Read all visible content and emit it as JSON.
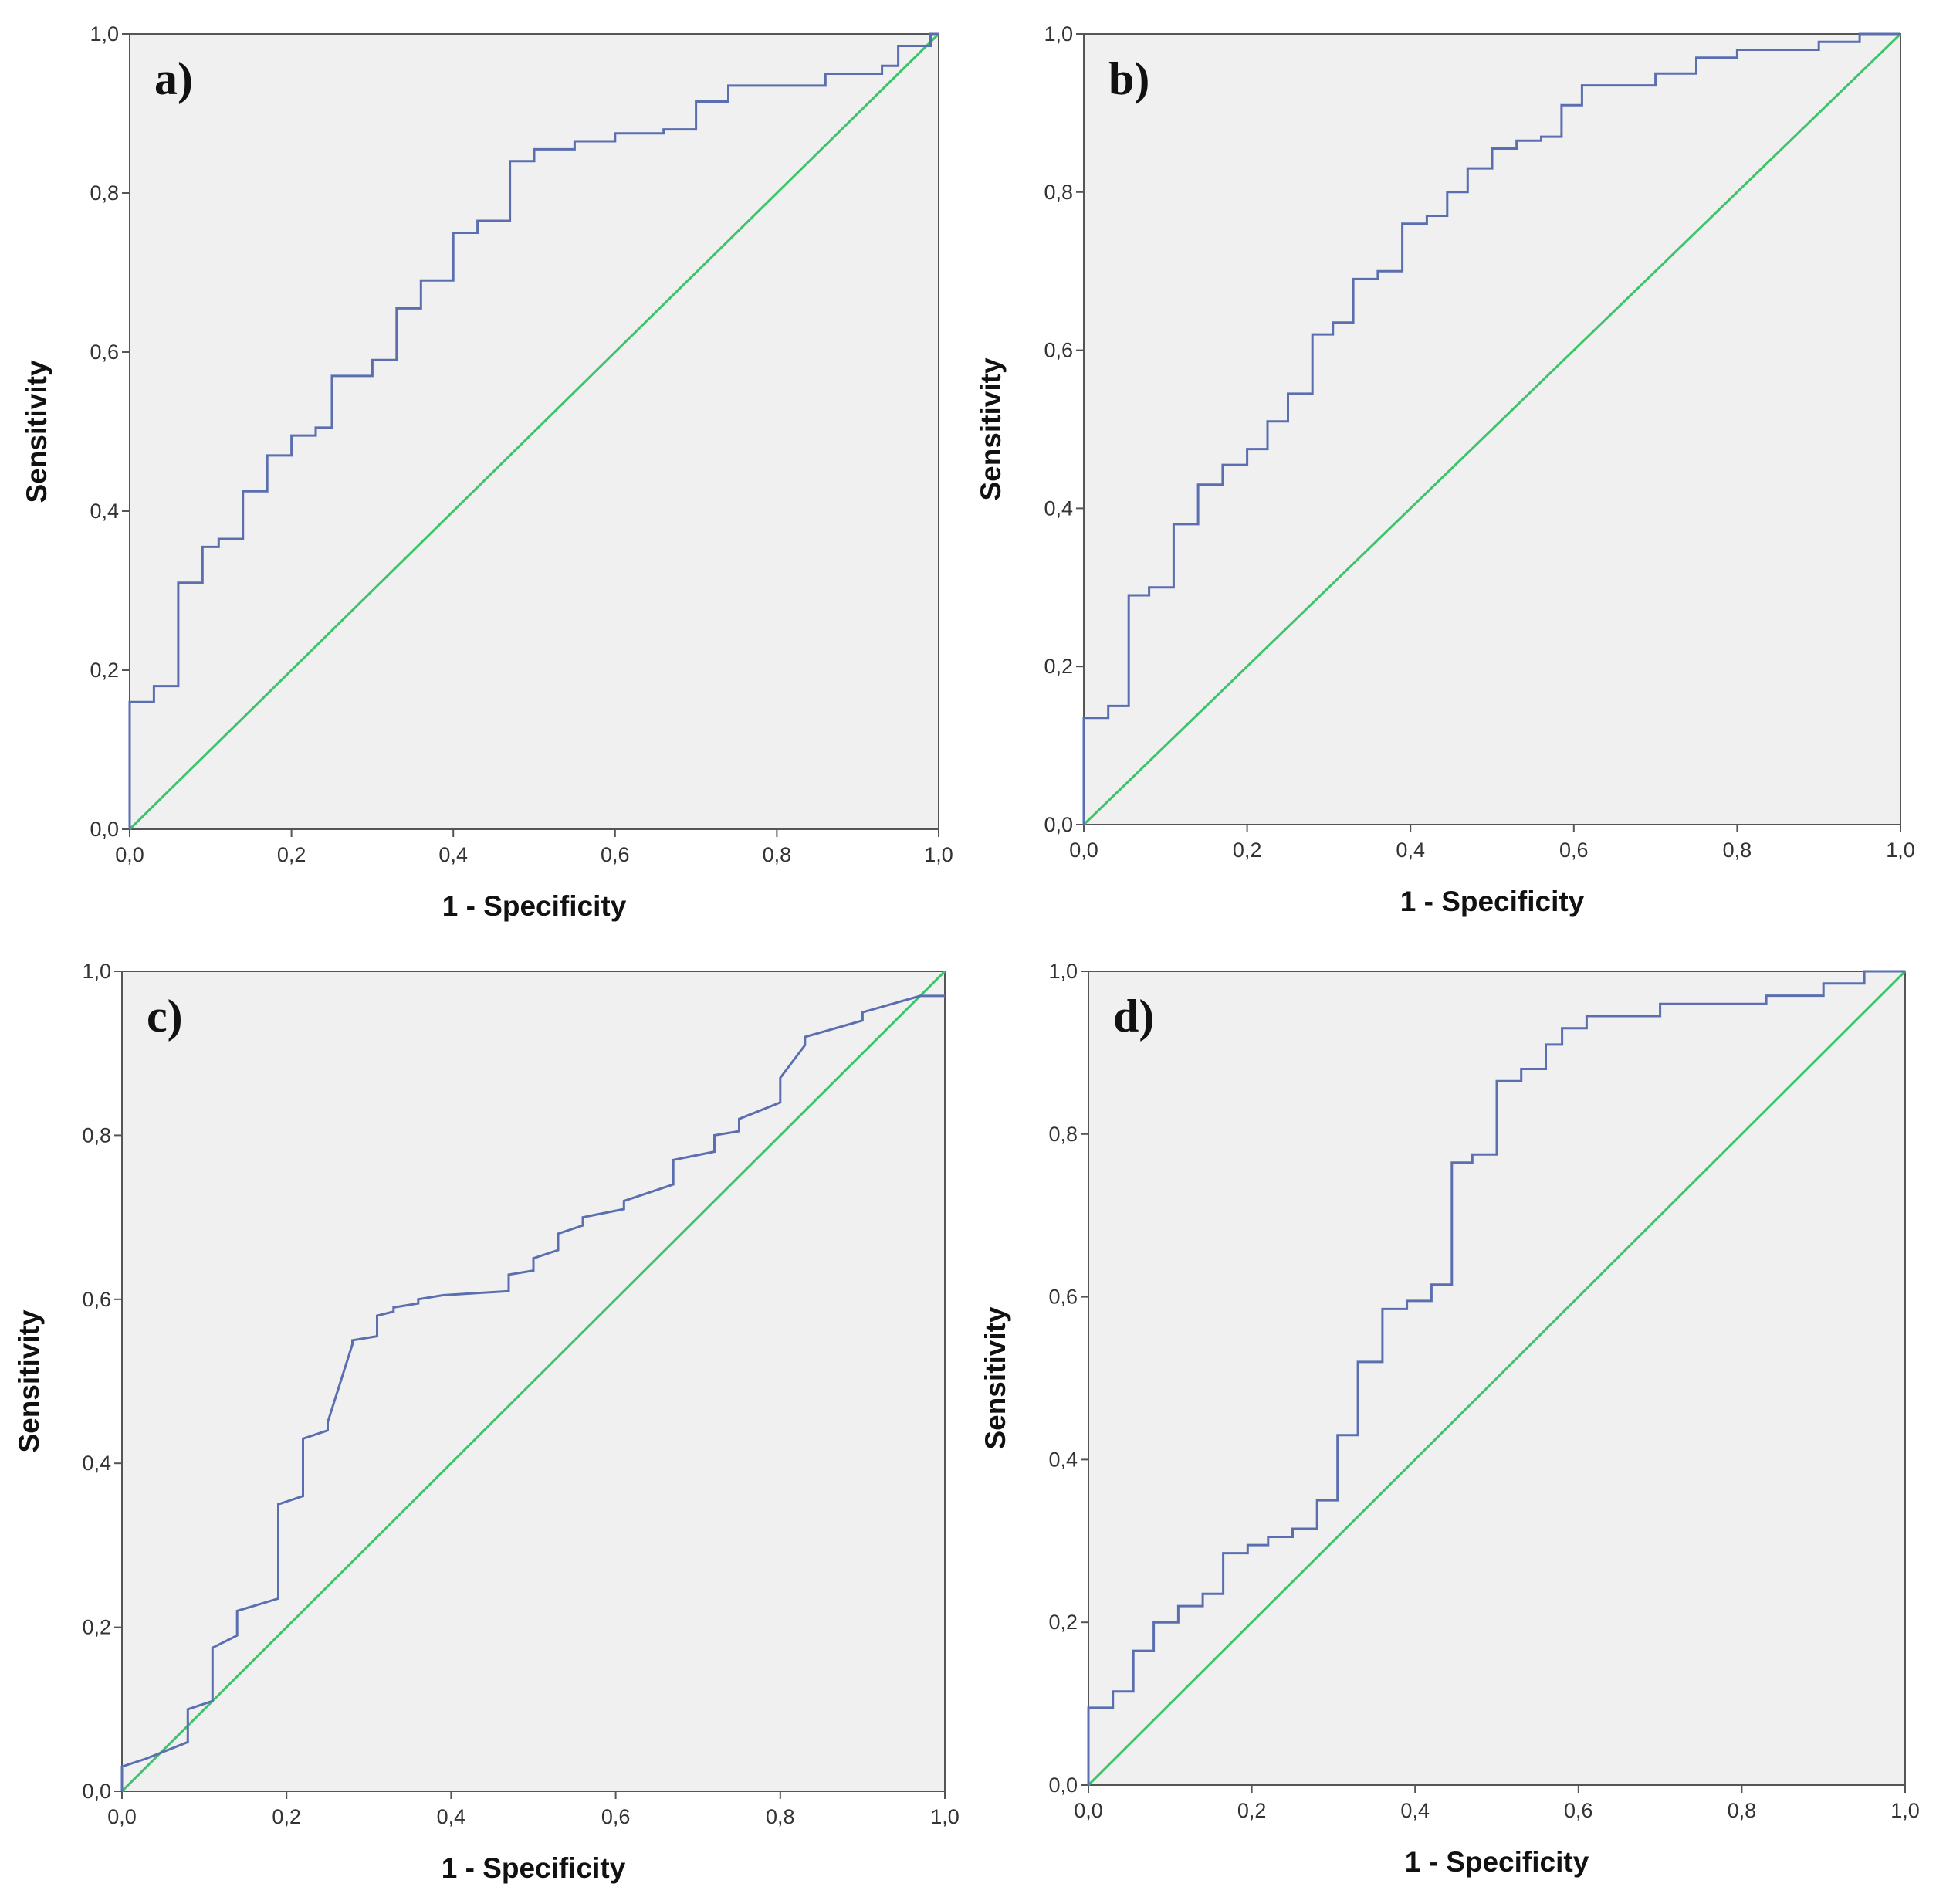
{
  "colors": {
    "roc_curve": "#5b6fb0",
    "reference_line": "#3cc46a"
  },
  "chart_data": [
    {
      "type": "line",
      "panel": "a)",
      "xlabel": "1 - Specificity",
      "ylabel": "Sensitivity",
      "xlim": [
        0,
        1
      ],
      "ylim": [
        0,
        1
      ],
      "x_ticks": [
        "0,0",
        "0,2",
        "0,4",
        "0,6",
        "0,8",
        "1,0"
      ],
      "y_ticks": [
        "0,0",
        "0,2",
        "0,4",
        "0,6",
        "0,8",
        "1,0"
      ],
      "series": [
        {
          "name": "ROC curve",
          "x": [
            0,
            0,
            0.03,
            0.03,
            0.06,
            0.06,
            0.09,
            0.09,
            0.11,
            0.11,
            0.14,
            0.14,
            0.17,
            0.17,
            0.2,
            0.2,
            0.23,
            0.23,
            0.25,
            0.25,
            0.3,
            0.3,
            0.33,
            0.33,
            0.36,
            0.36,
            0.4,
            0.4,
            0.43,
            0.43,
            0.47,
            0.47,
            0.5,
            0.5,
            0.55,
            0.55,
            0.6,
            0.6,
            0.66,
            0.66,
            0.7,
            0.7,
            0.74,
            0.74,
            0.86,
            0.86,
            0.93,
            0.93,
            0.95,
            0.95,
            0.99,
            0.99,
            1
          ],
          "y": [
            0,
            0.16,
            0.16,
            0.18,
            0.18,
            0.31,
            0.31,
            0.355,
            0.355,
            0.365,
            0.365,
            0.425,
            0.425,
            0.47,
            0.47,
            0.495,
            0.495,
            0.505,
            0.505,
            0.57,
            0.57,
            0.59,
            0.59,
            0.655,
            0.655,
            0.69,
            0.69,
            0.75,
            0.75,
            0.765,
            0.765,
            0.84,
            0.84,
            0.855,
            0.855,
            0.865,
            0.865,
            0.875,
            0.875,
            0.88,
            0.88,
            0.915,
            0.915,
            0.935,
            0.935,
            0.95,
            0.95,
            0.96,
            0.96,
            0.985,
            0.985,
            1,
            1
          ]
        },
        {
          "name": "Reference line",
          "x": [
            0,
            1
          ],
          "y": [
            0,
            1
          ]
        }
      ]
    },
    {
      "type": "line",
      "panel": "b)",
      "xlabel": "1 - Specificity",
      "ylabel": "Sensitivity",
      "xlim": [
        0,
        1
      ],
      "ylim": [
        0,
        1
      ],
      "x_ticks": [
        "0,0",
        "0,2",
        "0,4",
        "0,6",
        "0,8",
        "1,0"
      ],
      "y_ticks": [
        "0,0",
        "0,2",
        "0,4",
        "0,6",
        "0,8",
        "1,0"
      ],
      "series": [
        {
          "name": "ROC curve",
          "x": [
            0,
            0,
            0.03,
            0.03,
            0.055,
            0.055,
            0.08,
            0.08,
            0.11,
            0.11,
            0.14,
            0.14,
            0.17,
            0.17,
            0.2,
            0.2,
            0.225,
            0.225,
            0.25,
            0.25,
            0.28,
            0.28,
            0.305,
            0.305,
            0.33,
            0.33,
            0.36,
            0.36,
            0.39,
            0.39,
            0.42,
            0.42,
            0.445,
            0.445,
            0.47,
            0.47,
            0.5,
            0.5,
            0.53,
            0.53,
            0.56,
            0.56,
            0.585,
            0.585,
            0.61,
            0.61,
            0.7,
            0.7,
            0.75,
            0.75,
            0.8,
            0.8,
            0.9,
            0.9,
            0.95,
            0.95,
            1
          ],
          "y": [
            0,
            0.135,
            0.135,
            0.15,
            0.15,
            0.29,
            0.29,
            0.3,
            0.3,
            0.38,
            0.38,
            0.43,
            0.43,
            0.455,
            0.455,
            0.475,
            0.475,
            0.51,
            0.51,
            0.545,
            0.545,
            0.62,
            0.62,
            0.635,
            0.635,
            0.69,
            0.69,
            0.7,
            0.7,
            0.76,
            0.76,
            0.77,
            0.77,
            0.8,
            0.8,
            0.83,
            0.83,
            0.855,
            0.855,
            0.865,
            0.865,
            0.87,
            0.87,
            0.91,
            0.91,
            0.935,
            0.935,
            0.95,
            0.95,
            0.97,
            0.97,
            0.98,
            0.98,
            0.99,
            0.99,
            1,
            1
          ]
        },
        {
          "name": "Reference line",
          "x": [
            0,
            1
          ],
          "y": [
            0,
            1
          ]
        }
      ]
    },
    {
      "type": "line",
      "panel": "c)",
      "xlabel": "1 - Specificity",
      "ylabel": "Sensitivity",
      "xlim": [
        0,
        1
      ],
      "ylim": [
        0,
        1
      ],
      "x_ticks": [
        "0,0",
        "0,2",
        "0,4",
        "0,6",
        "0,8",
        "1,0"
      ],
      "y_ticks": [
        "0,0",
        "0,2",
        "0,4",
        "0,6",
        "0,8",
        "1,0"
      ],
      "series": [
        {
          "name": "ROC curve",
          "x": [
            0,
            0,
            0.03,
            0.03,
            0.08,
            0.08,
            0.11,
            0.11,
            0.14,
            0.14,
            0.19,
            0.19,
            0.22,
            0.22,
            0.25,
            0.25,
            0.28,
            0.28,
            0.31,
            0.31,
            0.33,
            0.33,
            0.36,
            0.36,
            0.39,
            0.47,
            0.47,
            0.5,
            0.5,
            0.53,
            0.53,
            0.56,
            0.56,
            0.61,
            0.61,
            0.67,
            0.67,
            0.72,
            0.72,
            0.75,
            0.75,
            0.8,
            0.8,
            0.83,
            0.83,
            0.9,
            0.9,
            0.97,
            0.97,
            1
          ],
          "y": [
            0,
            0.03,
            0.04,
            0.04,
            0.06,
            0.1,
            0.11,
            0.175,
            0.19,
            0.22,
            0.235,
            0.35,
            0.36,
            0.43,
            0.44,
            0.45,
            0.545,
            0.55,
            0.555,
            0.58,
            0.585,
            0.59,
            0.595,
            0.6,
            0.605,
            0.61,
            0.63,
            0.635,
            0.65,
            0.66,
            0.68,
            0.69,
            0.7,
            0.71,
            0.72,
            0.74,
            0.77,
            0.78,
            0.8,
            0.805,
            0.82,
            0.84,
            0.87,
            0.91,
            0.92,
            0.94,
            0.95,
            0.97,
            0.97,
            0.97
          ]
        },
        {
          "name": "Reference line",
          "x": [
            0,
            1
          ],
          "y": [
            0,
            1
          ]
        }
      ]
    },
    {
      "type": "line",
      "panel": "d)",
      "xlabel": "1 - Specificity",
      "ylabel": "Sensitivity",
      "xlim": [
        0,
        1
      ],
      "ylim": [
        0,
        1
      ],
      "x_ticks": [
        "0,0",
        "0,2",
        "0,4",
        "0,6",
        "0,8",
        "1,0"
      ],
      "y_ticks": [
        "0,0",
        "0,2",
        "0,4",
        "0,6",
        "0,8",
        "1,0"
      ],
      "series": [
        {
          "name": "ROC curve",
          "x": [
            0,
            0,
            0.03,
            0.03,
            0.055,
            0.055,
            0.08,
            0.08,
            0.11,
            0.11,
            0.14,
            0.14,
            0.165,
            0.165,
            0.195,
            0.195,
            0.22,
            0.22,
            0.25,
            0.25,
            0.28,
            0.28,
            0.305,
            0.305,
            0.33,
            0.33,
            0.36,
            0.36,
            0.39,
            0.39,
            0.42,
            0.42,
            0.445,
            0.445,
            0.47,
            0.47,
            0.5,
            0.5,
            0.53,
            0.53,
            0.56,
            0.56,
            0.58,
            0.58,
            0.61,
            0.61,
            0.7,
            0.7,
            0.83,
            0.83,
            0.9,
            0.9,
            0.95,
            0.95,
            1
          ],
          "y": [
            0,
            0.095,
            0.095,
            0.115,
            0.115,
            0.165,
            0.165,
            0.2,
            0.2,
            0.22,
            0.22,
            0.235,
            0.235,
            0.285,
            0.285,
            0.295,
            0.295,
            0.305,
            0.305,
            0.315,
            0.315,
            0.35,
            0.35,
            0.43,
            0.43,
            0.52,
            0.52,
            0.585,
            0.585,
            0.595,
            0.595,
            0.615,
            0.615,
            0.765,
            0.765,
            0.775,
            0.775,
            0.865,
            0.865,
            0.88,
            0.88,
            0.91,
            0.91,
            0.93,
            0.93,
            0.945,
            0.945,
            0.96,
            0.96,
            0.97,
            0.97,
            0.985,
            0.985,
            1,
            1
          ]
        },
        {
          "name": "Reference line",
          "x": [
            0,
            1
          ],
          "y": [
            0,
            1
          ]
        }
      ]
    }
  ]
}
